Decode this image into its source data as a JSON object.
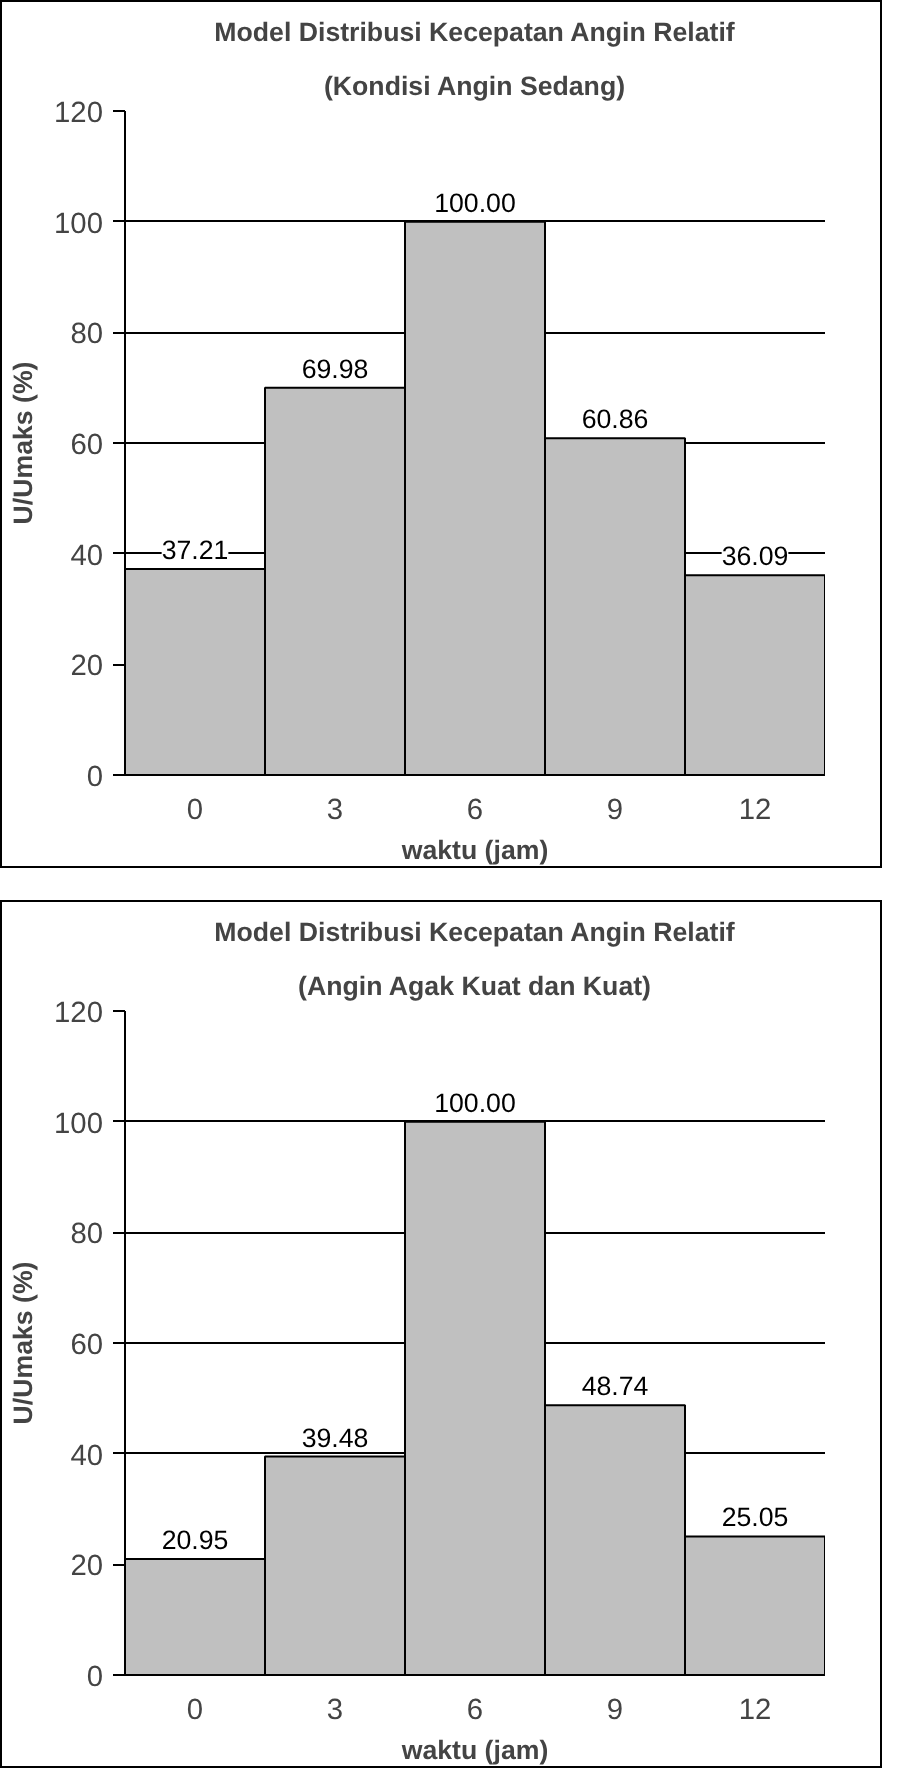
{
  "chart_data": [
    {
      "type": "bar",
      "title": "Model Distribusi Kecepatan Angin Relatif",
      "subtitle": "(Kondisi Angin Sedang)",
      "xlabel": "waktu (jam)",
      "ylabel": "U/Umaks (%)",
      "categories": [
        "0",
        "3",
        "6",
        "9",
        "12"
      ],
      "values": [
        37.21,
        69.98,
        100.0,
        60.86,
        36.09
      ],
      "value_labels": [
        "37.21",
        "69.98",
        "100.00",
        "60.86",
        "36.09"
      ],
      "color": "#c0c0c0",
      "ylim": [
        0,
        120
      ],
      "yticks": [
        0,
        20,
        40,
        60,
        80,
        100,
        120
      ],
      "grid": "y"
    },
    {
      "type": "bar",
      "title": "Model Distribusi Kecepatan Angin Relatif",
      "subtitle": "(Angin Agak Kuat dan Kuat)",
      "xlabel": "waktu (jam)",
      "ylabel": "U/Umaks (%)",
      "categories": [
        "0",
        "3",
        "6",
        "9",
        "12"
      ],
      "values": [
        20.95,
        39.48,
        100.0,
        48.74,
        25.05
      ],
      "value_labels": [
        "20.95",
        "39.48",
        "100.00",
        "48.74",
        "25.05"
      ],
      "color": "#c0c0c0",
      "ylim": [
        0,
        120
      ],
      "yticks": [
        0,
        20,
        40,
        60,
        80,
        100,
        120
      ],
      "grid": "y"
    }
  ]
}
